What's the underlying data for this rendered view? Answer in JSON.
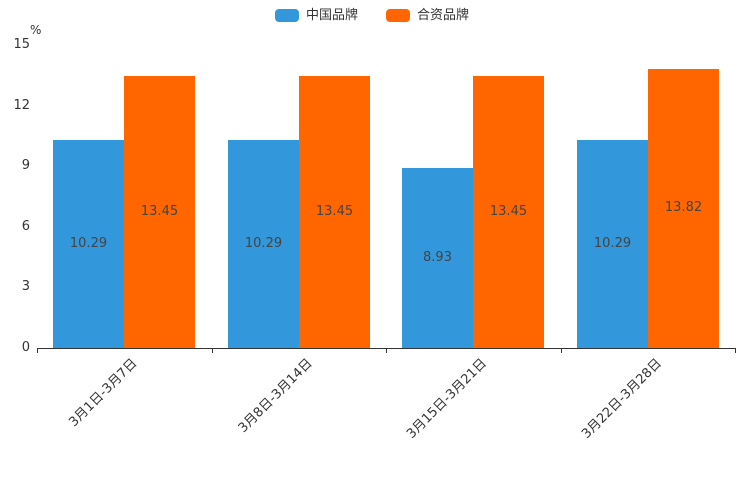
{
  "chart_data": {
    "type": "bar",
    "title": "",
    "categories": [
      "3月1日-3月7日",
      "3月8日-3月14日",
      "3月15日-3月21日",
      "3月22日-3月28日"
    ],
    "series": [
      {
        "name": "中国品牌",
        "color": "#3398DB",
        "values": [
          10.29,
          10.29,
          8.93,
          10.29
        ]
      },
      {
        "name": "合资品牌",
        "color": "#FF6600",
        "values": [
          13.45,
          13.45,
          13.45,
          13.82
        ]
      }
    ],
    "xlabel": "",
    "ylabel": "%",
    "ylim": [
      0,
      15
    ],
    "yticks": [
      0,
      3,
      6,
      9,
      12,
      15
    ],
    "grid": false,
    "legend_position": "top",
    "data_labels": "inside-center",
    "x_label_rotate": 45
  }
}
